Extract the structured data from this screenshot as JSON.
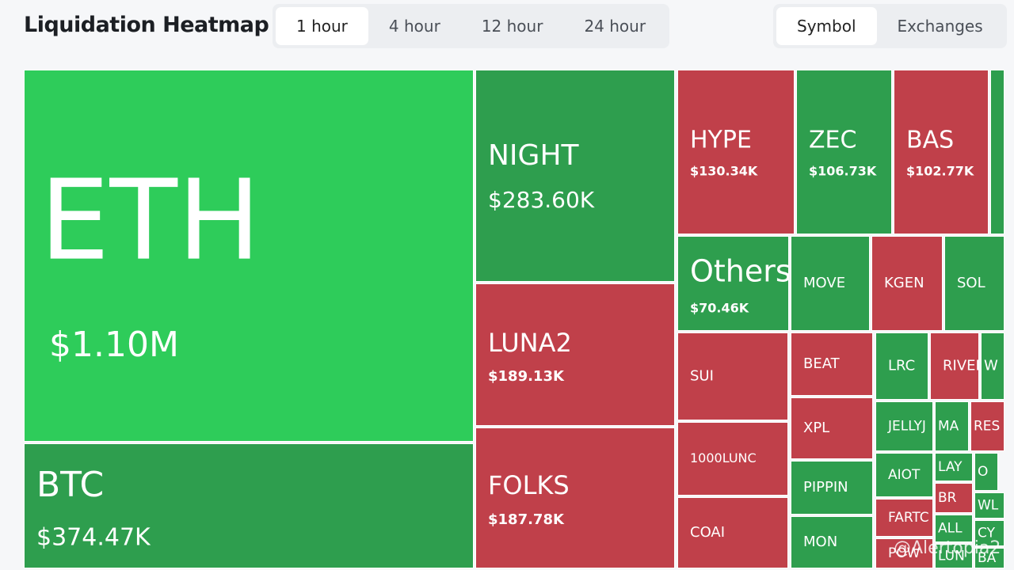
{
  "header": {
    "title": "Liquidation Heatmap",
    "time_tabs": [
      "1 hour",
      "4 hour",
      "12 hour",
      "24 hour"
    ],
    "active_time_tab": 0,
    "view_tabs": [
      "Symbol",
      "Exchanges"
    ],
    "active_view_tab": 0
  },
  "watermark": "@Alertopia2",
  "chart_data": {
    "type": "treemap",
    "categories": [
      "ETH",
      "BTC",
      "NIGHT",
      "LUNA2",
      "FOLKS",
      "HYPE",
      "ZEC",
      "BAS",
      "Others",
      "MOVE",
      "KGEN",
      "SOL",
      "SUI",
      "1000LUNC",
      "COAI",
      "BEAT",
      "XPL",
      "PIPPIN",
      "MON",
      "LRC",
      "RIVEI",
      "W",
      "JELLYJ",
      "MA",
      "RES",
      "AIOT",
      "LAY",
      "O",
      "BR",
      "WL",
      "FARTC",
      "ALL",
      "CY",
      "POW",
      "LUN",
      "BA",
      null
    ],
    "values": [
      1100000,
      374470,
      283600,
      189130,
      187780,
      130340,
      106730,
      102770,
      70460,
      49000,
      44000,
      37000,
      63000,
      53000,
      52000,
      34000,
      33000,
      29000,
      28000,
      23000,
      22000,
      10000,
      19000,
      11000,
      11000,
      17000,
      7000,
      6000,
      7500,
      5000,
      14000,
      7000,
      5000,
      11000,
      6000,
      4000,
      15000
    ],
    "value_labels": [
      "$1.10M",
      "$374.47K",
      "$283.60K",
      "$189.13K",
      "$187.78K",
      "$130.34K",
      "$106.73K",
      "$102.77K",
      "$70.46K",
      null,
      null,
      null,
      null,
      null,
      null,
      null,
      null,
      null,
      null,
      null,
      null,
      null,
      null,
      null,
      null,
      null,
      null,
      null,
      null,
      null,
      null,
      null,
      null,
      null,
      null,
      null,
      null
    ],
    "colors": [
      "#2ecc5a",
      "#2e9e4e",
      "#2e9e4e",
      "#c0404a",
      "#c0404a",
      "#c0404a",
      "#2e9e4e",
      "#c0404a",
      "#2e9e4e",
      "#2e9e4e",
      "#c0404a",
      "#2e9e4e",
      "#c0404a",
      "#c0404a",
      "#c0404a",
      "#c0404a",
      "#c0404a",
      "#2e9e4e",
      "#2e9e4e",
      "#2e9e4e",
      "#c0404a",
      "#2e9e4e",
      "#2e9e4e",
      "#2e9e4e",
      "#c0404a",
      "#2e9e4e",
      "#2e9e4e",
      "#2e9e4e",
      "#c0404a",
      "#2e9e4e",
      "#c0404a",
      "#2e9e4e",
      "#2e9e4e",
      "#c0404a",
      "#2e9e4e",
      "#2e9e4e",
      "#2e9e4e"
    ]
  }
}
